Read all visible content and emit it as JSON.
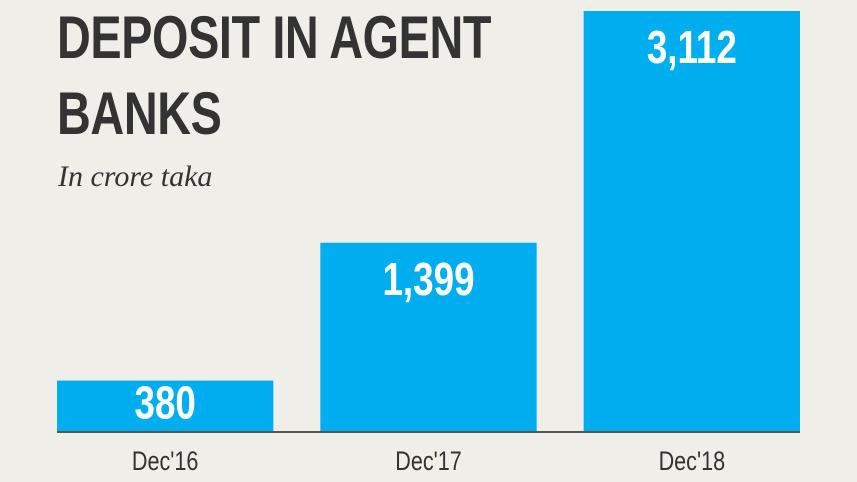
{
  "chart_data": {
    "type": "bar",
    "title": "DEPOSIT IN AGENT BANKS",
    "subtitle": "In crore taka",
    "categories": [
      "Dec'16",
      "Dec'17",
      "Dec'18"
    ],
    "values": [
      380,
      1399,
      3112
    ],
    "value_labels": [
      "380",
      "1,399",
      "3,112"
    ],
    "color": "#00aeef"
  }
}
